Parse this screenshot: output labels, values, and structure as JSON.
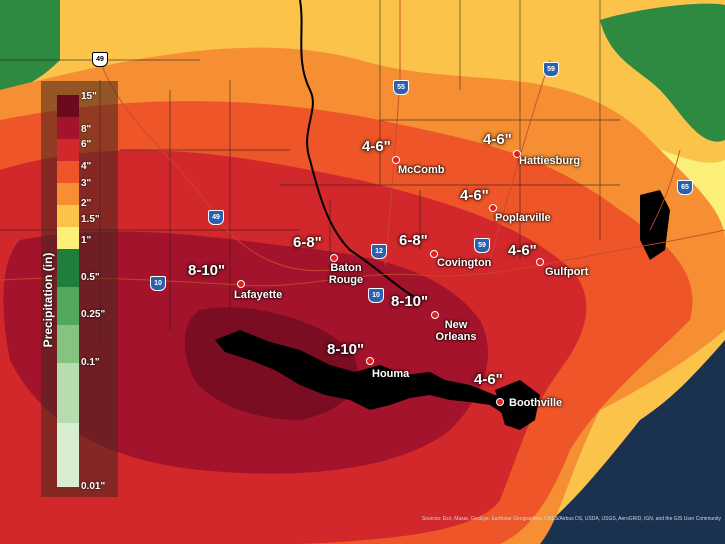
{
  "legend": {
    "title": "Precipitation (in)",
    "ticks": [
      "15\"",
      "8\"",
      "6\"",
      "4\"",
      "3\"",
      "2\"",
      "1.5\"",
      "1\"",
      "0.5\"",
      "0.25\"",
      "0.1\"",
      "0.01\""
    ],
    "colors": [
      "#6b0a1f",
      "#a3132b",
      "#d2282b",
      "#ee5528",
      "#f68f33",
      "#fbc349",
      "#fcf07a",
      "#1f7f3a",
      "#52a85a",
      "#86c380",
      "#b6dcb0",
      "#d6edd2"
    ]
  },
  "amounts": [
    {
      "id": "mccomb-amt",
      "label": "4-6\""
    },
    {
      "id": "hattiesburg-amt",
      "label": "4-6\""
    },
    {
      "id": "poplarville-amt",
      "label": "4-6\""
    },
    {
      "id": "gulfport-amt",
      "label": "4-6\""
    },
    {
      "id": "batonrouge-amt",
      "label": "6-8\""
    },
    {
      "id": "covington-amt",
      "label": "6-8\""
    },
    {
      "id": "lafayette-amt",
      "label": "8-10\""
    },
    {
      "id": "neworleans-amt",
      "label": "8-10\""
    },
    {
      "id": "houma-amt",
      "label": "8-10\""
    },
    {
      "id": "boothville-amt",
      "label": "4-6\""
    }
  ],
  "cities": {
    "mccomb": "McComb",
    "hattiesburg": "Hattiesburg",
    "poplarville": "Poplarville",
    "gulfport": "Gulfport",
    "batonrouge": "Baton Rouge",
    "covington": "Covington",
    "lafayette": "Lafayette",
    "neworleans": "New Orleans",
    "houma": "Houma",
    "boothville": "Boothville"
  },
  "highways": [
    "49",
    "55",
    "59",
    "49",
    "10",
    "12",
    "59",
    "10",
    "65"
  ],
  "credits": "Sources: Esri, Maxar, GeoEye, Earthstar Geographics, CNES/Airbus DS, USDA, USGS, AeroGRID, IGN, and the GIS User Community"
}
